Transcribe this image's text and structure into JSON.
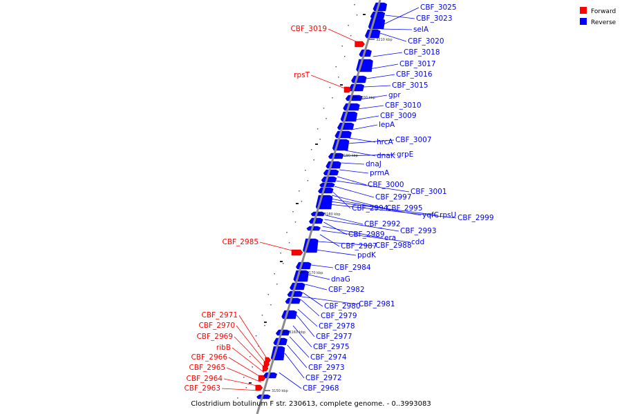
{
  "caption": "Clostridium botulinum F str. 230613, complete genome. - 0..3993083",
  "legend": [
    {
      "label": "Forward",
      "color": "#ff0000"
    },
    {
      "label": "Reverse",
      "color": "#0000ff"
    }
  ],
  "colors": {
    "forward": "#ff0000",
    "reverse": "#0000ff",
    "backbone": "#8a8a8a"
  },
  "ticks": [
    "3210 kbp",
    "3200 kbp",
    "3190 kbp",
    "3180 kbp",
    "3170 kbp",
    "3160 kbp",
    "3150 kbp"
  ],
  "genes_reverse": [
    "CBF_3025",
    "CBF_3023",
    "selA",
    "CBF_3020",
    "CBF_3018",
    "CBF_3017",
    "CBF_3016",
    "CBF_3015",
    "gpr",
    "CBF_3010",
    "CBF_3009",
    "lepA",
    "hrcA",
    "CBF_3007",
    "dnaK",
    "grpE",
    "dnaJ",
    "prmA",
    "CBF_3000",
    "CBF_3001",
    "CBF_2997",
    "CBF_2994",
    "CBF_2995",
    "yqfC",
    "rpsU",
    "CBF_2999",
    "CBF_2992",
    "CBF_2993",
    "CBF_2989",
    "era",
    "cdd",
    "CBF_2987",
    "CBF_2988",
    "ppdK",
    "CBF_2984",
    "dnaG",
    "CBF_2982",
    "CBF_2980",
    "CBF_2981",
    "CBF_2979",
    "CBF_2978",
    "CBF_2977",
    "CBF_2975",
    "CBF_2974",
    "CBF_2973",
    "CBF_2972",
    "CBF_2968"
  ],
  "genes_forward": [
    "CBF_3019",
    "rpsT",
    "CBF_2985",
    "CBF_2971",
    "CBF_2970",
    "CBF_2969",
    "ribB",
    "CBF_2966",
    "CBF_2965",
    "CBF_2964",
    "CBF_2963"
  ]
}
